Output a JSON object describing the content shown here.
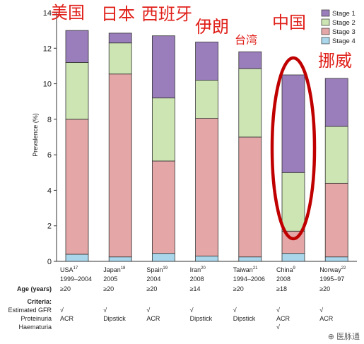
{
  "chart_data": {
    "type": "bar",
    "stacked": true,
    "ylabel": "Prevalence (%)",
    "ylim": [
      0,
      14
    ],
    "yticks": [
      0,
      2,
      4,
      6,
      8,
      10,
      12,
      14
    ],
    "legend_position": "top-right",
    "categories": [
      {
        "name": "USA",
        "ref": "17",
        "year": "1999–2004"
      },
      {
        "name": "Japan",
        "ref": "18",
        "year": "2005"
      },
      {
        "name": "Spain",
        "ref": "19",
        "year": "2004"
      },
      {
        "name": "Iran",
        "ref": "20",
        "year": "2008"
      },
      {
        "name": "Taiwan",
        "ref": "21",
        "year": "1994–2006"
      },
      {
        "name": "China",
        "ref": "9",
        "year": "2008"
      },
      {
        "name": "Norway",
        "ref": "22",
        "year": "1995–97"
      }
    ],
    "series": [
      {
        "name": "Stage 4",
        "color": "#a9d6ea",
        "values": [
          0.4,
          0.25,
          0.45,
          0.3,
          0.25,
          0.45,
          0.25
        ]
      },
      {
        "name": "Stage 3",
        "color": "#e4a6a6",
        "values": [
          7.6,
          10.3,
          5.2,
          7.75,
          6.75,
          1.25,
          4.15
        ]
      },
      {
        "name": "Stage 2",
        "color": "#cde4b3",
        "values": [
          3.2,
          1.75,
          3.55,
          2.15,
          3.85,
          3.3,
          3.2
        ]
      },
      {
        "name": "Stage 1",
        "color": "#9a7ebc",
        "values": [
          1.8,
          0.55,
          3.5,
          2.15,
          0.95,
          5.5,
          2.7
        ]
      }
    ],
    "overlay_labels": [
      "美国",
      "日本",
      "西班牙",
      "伊朗",
      "台湾",
      "中国",
      "挪威"
    ],
    "highlight": {
      "category": "China",
      "color": "#c00000"
    }
  },
  "table": {
    "age_label": "Age (years)",
    "ages": [
      "≥20",
      "≥20",
      "≥20",
      "≥14",
      "≥20",
      "≥18",
      "≥20"
    ],
    "criteria_label": "Criteria:",
    "gfr_label": "Estimated GFR",
    "proteinuria_label": "Proteinuria",
    "haematuria_label": "Haematuria",
    "gfr": [
      "√",
      "√",
      "√",
      "√",
      "√",
      "√",
      "√"
    ],
    "proteinuria": [
      "ACR",
      "Dipstick",
      "ACR",
      "Dipstick",
      "Dipstick",
      "ACR",
      "ACR"
    ],
    "haematuria": [
      "",
      "",
      "",
      "",
      "",
      "√",
      ""
    ]
  },
  "watermark": "⊕ 医脉通"
}
